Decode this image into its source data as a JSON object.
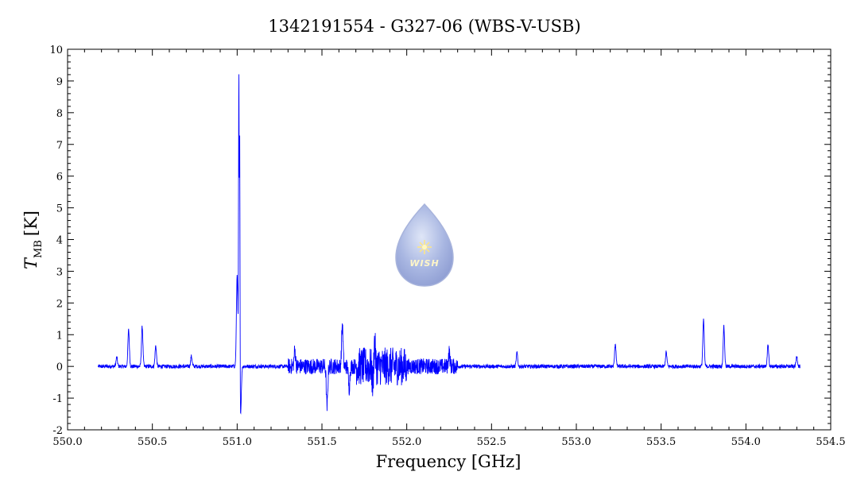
{
  "chart_data": {
    "type": "line",
    "title": "1342191554 - G327-06 (WBS-V-USB)",
    "xlabel": "Frequency [GHz]",
    "ylabel_main": "T",
    "ylabel_sub": "MB",
    "ylabel_unit": "[K]",
    "xlim": [
      550.0,
      554.5
    ],
    "ylim": [
      -2,
      10
    ],
    "x_ticks": [
      "550.0",
      "550.5",
      "551.0",
      "551.5",
      "552.0",
      "552.5",
      "553.0",
      "553.5",
      "554.0",
      "554.5"
    ],
    "y_ticks": [
      "-2",
      "-1",
      "0",
      "1",
      "2",
      "3",
      "4",
      "5",
      "6",
      "7",
      "8",
      "9",
      "10"
    ],
    "grid": false,
    "series": [
      {
        "color": "#0000ff",
        "x_range": [
          550.18,
          554.32
        ],
        "baseline": 0.0,
        "peaks": [
          {
            "x": 550.29,
            "y": 0.28
          },
          {
            "x": 550.36,
            "y": 1.15
          },
          {
            "x": 550.44,
            "y": 1.25
          },
          {
            "x": 550.52,
            "y": 0.65
          },
          {
            "x": 550.73,
            "y": 0.32
          },
          {
            "x": 551.0,
            "y": 2.9
          },
          {
            "x": 551.01,
            "y": 9.1
          },
          {
            "x": 551.015,
            "y": 8.0
          },
          {
            "x": 551.02,
            "y": -1.55
          },
          {
            "x": 551.34,
            "y": 0.5
          },
          {
            "x": 551.53,
            "y": -1.3
          },
          {
            "x": 551.62,
            "y": 1.3
          },
          {
            "x": 551.66,
            "y": -0.7
          },
          {
            "x": 551.81,
            "y": 0.78
          },
          {
            "x": 551.8,
            "y": -0.6
          },
          {
            "x": 552.25,
            "y": 0.45
          },
          {
            "x": 552.65,
            "y": 0.42
          },
          {
            "x": 553.23,
            "y": 0.72
          },
          {
            "x": 553.53,
            "y": 0.45
          },
          {
            "x": 553.75,
            "y": 1.45
          },
          {
            "x": 553.87,
            "y": 1.25
          },
          {
            "x": 554.13,
            "y": 0.65
          },
          {
            "x": 554.3,
            "y": 0.32
          }
        ],
        "noise_bands": [
          {
            "from": 551.3,
            "to": 552.3,
            "amplitude": 0.25
          },
          {
            "from": 551.7,
            "to": 552.0,
            "amplitude": 0.6
          }
        ]
      }
    ]
  },
  "logo": {
    "text": "WISH"
  }
}
